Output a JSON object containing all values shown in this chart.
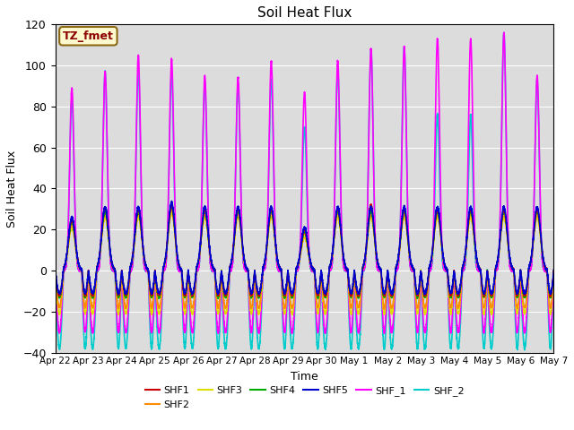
{
  "title": "Soil Heat Flux",
  "xlabel": "Time",
  "ylabel": "Soil Heat Flux",
  "ylim": [
    -40,
    120
  ],
  "yticks": [
    -40,
    -20,
    0,
    20,
    40,
    60,
    80,
    100,
    120
  ],
  "xtick_labels": [
    "Apr 22",
    "Apr 23",
    "Apr 24",
    "Apr 25",
    "Apr 26",
    "Apr 27",
    "Apr 28",
    "Apr 29",
    "Apr 30",
    "May 1",
    "May 2",
    "May 3",
    "May 4",
    "May 5",
    "May 6",
    "May 7"
  ],
  "annotation_text": "TZ_fmet",
  "annotation_color": "#8B0000",
  "annotation_bg": "#FFFACD",
  "annotation_border": "#8B6914",
  "bg_color": "#DCDCDC",
  "series": {
    "SHF1": {
      "color": "#CC0000",
      "lw": 1.0
    },
    "SHF2": {
      "color": "#FF8C00",
      "lw": 1.0
    },
    "SHF3": {
      "color": "#DDDD00",
      "lw": 1.0
    },
    "SHF4": {
      "color": "#00AA00",
      "lw": 1.0
    },
    "SHF5": {
      "color": "#0000CC",
      "lw": 1.2
    },
    "SHF_1": {
      "color": "#FF00FF",
      "lw": 1.2
    },
    "SHF_2": {
      "color": "#00CCCC",
      "lw": 1.2
    }
  },
  "legend_order": [
    "SHF1",
    "SHF2",
    "SHF3",
    "SHF4",
    "SHF5",
    "SHF_1",
    "SHF_2"
  ],
  "num_days": 15,
  "points_per_day": 480,
  "shf_cluster_peaks": [
    25,
    30,
    30,
    32,
    30,
    30,
    30,
    20,
    30,
    30,
    30,
    30,
    30,
    30,
    30
  ],
  "shf_cluster_night": -13,
  "shf1_offsets": [
    0,
    1,
    0,
    0,
    0,
    0,
    0,
    0,
    0,
    2,
    0,
    0,
    0,
    0,
    0
  ],
  "shf2_offsets": [
    -2,
    -2,
    -2,
    -2,
    -2,
    -2,
    -2,
    -2,
    -2,
    -2,
    -2,
    -2,
    -2,
    -2,
    -2
  ],
  "shf3_offsets": [
    -4,
    -4,
    -4,
    -4,
    -4,
    -4,
    -4,
    -4,
    -4,
    -4,
    -4,
    -4,
    -4,
    -4,
    -4
  ],
  "shf4_offsets": [
    -1,
    -1,
    -1,
    -1,
    -1,
    -1,
    -1,
    -1,
    -1,
    -1,
    -1,
    -1,
    -1,
    -1,
    -1
  ],
  "shf5_offsets": [
    1,
    1,
    1,
    1,
    1,
    1,
    1,
    1,
    1,
    1,
    1,
    1,
    1,
    1,
    1
  ],
  "shf_1_peaks": [
    89,
    97,
    105,
    103,
    95,
    94,
    102,
    87,
    102,
    108,
    109,
    113,
    113,
    116,
    95
  ],
  "shf_1_night": -30,
  "shf_2_peaks": [
    84,
    97,
    97,
    96,
    91,
    91,
    93,
    70,
    98,
    108,
    109,
    76,
    76,
    116,
    93
  ],
  "shf_2_night": -38
}
